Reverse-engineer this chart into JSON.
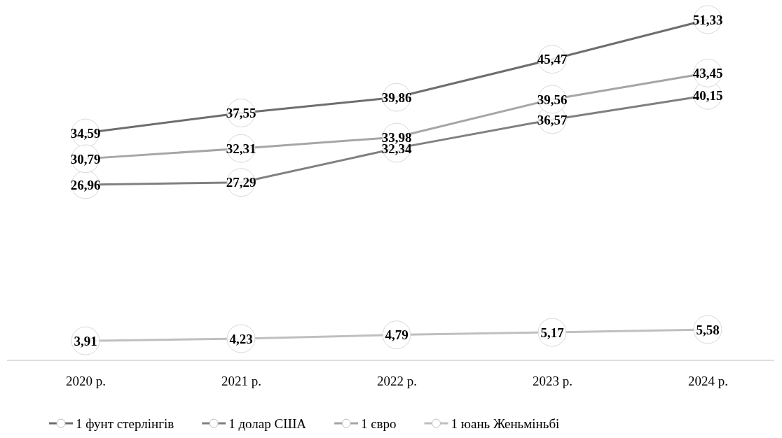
{
  "chart_data": {
    "type": "line",
    "categories": [
      "2020 р.",
      "2021 р.",
      "2022 р.",
      "2023 р.",
      "2024 р."
    ],
    "series": [
      {
        "name": "1 фунт стерлінгів",
        "color": "#6e6e6e",
        "values": [
          34.59,
          37.55,
          39.86,
          45.47,
          51.33
        ],
        "value_labels": [
          "34,59",
          "37,55",
          "39,86",
          "45,47",
          "51,33"
        ]
      },
      {
        "name": "1 долар США",
        "color": "#808080",
        "values": [
          26.96,
          27.29,
          32.34,
          36.57,
          40.15
        ],
        "value_labels": [
          "26,96",
          "27,29",
          "32,34",
          "36,57",
          "40,15"
        ]
      },
      {
        "name": "1 євро",
        "color": "#a6a6a6",
        "values": [
          30.79,
          32.31,
          33.98,
          39.56,
          43.45
        ],
        "value_labels": [
          "30,79",
          "32,31",
          "33,98",
          "39,56",
          "43,45"
        ]
      },
      {
        "name": "1 юань Женьміньбі",
        "color": "#bfbfbf",
        "values": [
          3.91,
          4.23,
          4.79,
          5.17,
          5.58
        ],
        "value_labels": [
          "3,91",
          "4,23",
          "4,79",
          "5,17",
          "5,58"
        ]
      }
    ],
    "marker": "circle",
    "legend": "bottom"
  }
}
